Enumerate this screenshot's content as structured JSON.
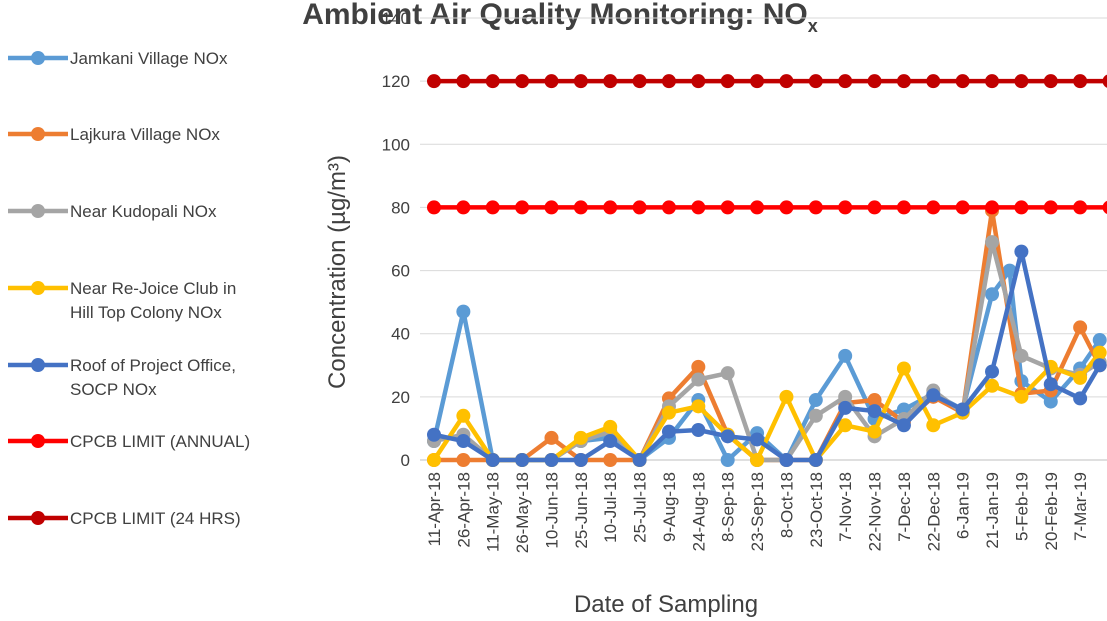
{
  "chart_data": {
    "type": "line",
    "title": "Ambient Air Quality Monitoring: NO",
    "title_subscript": "x",
    "xlabel": "Date of Sampling",
    "ylabel": "Concentration (µg/m³)",
    "ylim": [
      0,
      140
    ],
    "yticks": [
      0,
      20,
      40,
      60,
      80,
      100,
      120,
      140
    ],
    "x_tick_labels": [
      "11-Apr-18",
      "26-Apr-18",
      "11-May-18",
      "26-May-18",
      "10-Jun-18",
      "25-Jun-18",
      "10-Jul-18",
      "25-Jul-18",
      "9-Aug-18",
      "24-Aug-18",
      "8-Sep-18",
      "23-Sep-18",
      "8-Oct-18",
      "23-Oct-18",
      "7-Nov-18",
      "22-Nov-18",
      "7-Dec-18",
      "22-Dec-18",
      "6-Jan-19",
      "21-Jan-19",
      "5-Feb-19",
      "20-Feb-19",
      "7-Mar-19"
    ],
    "grid": true,
    "legend_position": "left",
    "series": [
      {
        "name": "Jamkani Village NOx",
        "color": "#5B9BD5",
        "points": [
          [
            "2018-04-11",
            6
          ],
          [
            "2018-04-26",
            47
          ],
          [
            "2018-05-11",
            0
          ],
          [
            "2018-05-26",
            0
          ],
          [
            "2018-06-10",
            0
          ],
          [
            "2018-06-25",
            6
          ],
          [
            "2018-07-10",
            7
          ],
          [
            "2018-07-25",
            0
          ],
          [
            "2018-08-09",
            7
          ],
          [
            "2018-08-24",
            19
          ],
          [
            "2018-09-08",
            0
          ],
          [
            "2018-09-23",
            8.5
          ],
          [
            "2018-10-08",
            0
          ],
          [
            "2018-10-23",
            19
          ],
          [
            "2018-11-07",
            33
          ],
          [
            "2018-11-22",
            13
          ],
          [
            "2018-12-07",
            16
          ],
          [
            "2018-12-22",
            21
          ],
          [
            "2019-01-06",
            16
          ],
          [
            "2019-01-21",
            52.5
          ],
          [
            "2019-01-30",
            60
          ],
          [
            "2019-02-05",
            25
          ],
          [
            "2019-02-20",
            18.5
          ],
          [
            "2019-03-07",
            29
          ],
          [
            "2019-03-17",
            38
          ]
        ]
      },
      {
        "name": "Lajkura Village NOx",
        "color": "#ED7D31",
        "points": [
          [
            "2018-04-11",
            0
          ],
          [
            "2018-04-26",
            0
          ],
          [
            "2018-05-11",
            0
          ],
          [
            "2018-05-26",
            0
          ],
          [
            "2018-06-10",
            7
          ],
          [
            "2018-06-25",
            0
          ],
          [
            "2018-07-10",
            0
          ],
          [
            "2018-07-25",
            0
          ],
          [
            "2018-08-09",
            19.5
          ],
          [
            "2018-08-24",
            29.5
          ],
          [
            "2018-09-08",
            8
          ],
          [
            "2018-09-23",
            0
          ],
          [
            "2018-10-08",
            0
          ],
          [
            "2018-10-23",
            0
          ],
          [
            "2018-11-07",
            18
          ],
          [
            "2018-11-22",
            19
          ],
          [
            "2018-12-07",
            12
          ],
          [
            "2018-12-22",
            20
          ],
          [
            "2019-01-06",
            15
          ],
          [
            "2019-01-21",
            79
          ],
          [
            "2019-02-05",
            21
          ],
          [
            "2019-02-20",
            22
          ],
          [
            "2019-03-07",
            42
          ],
          [
            "2019-03-17",
            30
          ]
        ]
      },
      {
        "name": "Near Kudopali NOx",
        "color": "#A5A5A5",
        "points": [
          [
            "2018-04-11",
            6
          ],
          [
            "2018-04-26",
            8
          ],
          [
            "2018-05-11",
            0
          ],
          [
            "2018-05-26",
            0
          ],
          [
            "2018-06-10",
            0
          ],
          [
            "2018-06-25",
            6
          ],
          [
            "2018-07-10",
            9
          ],
          [
            "2018-07-25",
            0
          ],
          [
            "2018-08-09",
            17
          ],
          [
            "2018-08-24",
            25.5
          ],
          [
            "2018-09-08",
            27.5
          ],
          [
            "2018-09-23",
            0
          ],
          [
            "2018-10-08",
            0
          ],
          [
            "2018-10-23",
            14
          ],
          [
            "2018-11-07",
            20
          ],
          [
            "2018-11-22",
            7.5
          ],
          [
            "2018-12-07",
            13
          ],
          [
            "2018-12-22",
            22
          ],
          [
            "2019-01-06",
            15
          ],
          [
            "2019-01-21",
            69
          ],
          [
            "2019-02-05",
            33
          ],
          [
            "2019-02-20",
            29
          ],
          [
            "2019-03-07",
            27
          ],
          [
            "2019-03-17",
            31
          ]
        ]
      },
      {
        "name": "Near Re-Joice Club in Hill Top Colony NOx",
        "color": "#FFC000",
        "points": [
          [
            "2018-04-11",
            0
          ],
          [
            "2018-04-26",
            14
          ],
          [
            "2018-05-11",
            0
          ],
          [
            "2018-05-26",
            0
          ],
          [
            "2018-06-10",
            0
          ],
          [
            "2018-06-25",
            7
          ],
          [
            "2018-07-10",
            10.5
          ],
          [
            "2018-07-25",
            0
          ],
          [
            "2018-08-09",
            15
          ],
          [
            "2018-08-24",
            17
          ],
          [
            "2018-09-08",
            8
          ],
          [
            "2018-09-23",
            0
          ],
          [
            "2018-10-08",
            20
          ],
          [
            "2018-10-23",
            0
          ],
          [
            "2018-11-07",
            11
          ],
          [
            "2018-11-22",
            9
          ],
          [
            "2018-12-07",
            29
          ],
          [
            "2018-12-22",
            11
          ],
          [
            "2019-01-06",
            15
          ],
          [
            "2019-01-21",
            23.5
          ],
          [
            "2019-02-05",
            20
          ],
          [
            "2019-02-20",
            29.5
          ],
          [
            "2019-03-07",
            26
          ],
          [
            "2019-03-17",
            34
          ]
        ]
      },
      {
        "name": "Roof of Project Office, SOCP NOx",
        "color": "#4472C4",
        "points": [
          [
            "2018-04-11",
            8
          ],
          [
            "2018-04-26",
            6
          ],
          [
            "2018-05-11",
            0
          ],
          [
            "2018-05-26",
            0
          ],
          [
            "2018-06-10",
            0
          ],
          [
            "2018-06-25",
            0
          ],
          [
            "2018-07-10",
            6
          ],
          [
            "2018-07-25",
            0
          ],
          [
            "2018-08-09",
            9
          ],
          [
            "2018-08-24",
            9.5
          ],
          [
            "2018-09-08",
            7.5
          ],
          [
            "2018-09-23",
            6.5
          ],
          [
            "2018-10-08",
            0
          ],
          [
            "2018-10-23",
            0
          ],
          [
            "2018-11-07",
            16.5
          ],
          [
            "2018-11-22",
            15.5
          ],
          [
            "2018-12-07",
            11
          ],
          [
            "2018-12-22",
            20.5
          ],
          [
            "2019-01-06",
            16
          ],
          [
            "2019-01-21",
            28
          ],
          [
            "2019-02-05",
            66
          ],
          [
            "2019-02-20",
            24
          ],
          [
            "2019-03-07",
            19.5
          ],
          [
            "2019-03-17",
            30
          ]
        ]
      },
      {
        "name": "CPCB LIMIT (ANNUAL)",
        "color": "#FF0000",
        "constant": 80
      },
      {
        "name": "CPCB LIMIT (24 HRS)",
        "color": "#C00000",
        "constant": 120
      }
    ]
  }
}
